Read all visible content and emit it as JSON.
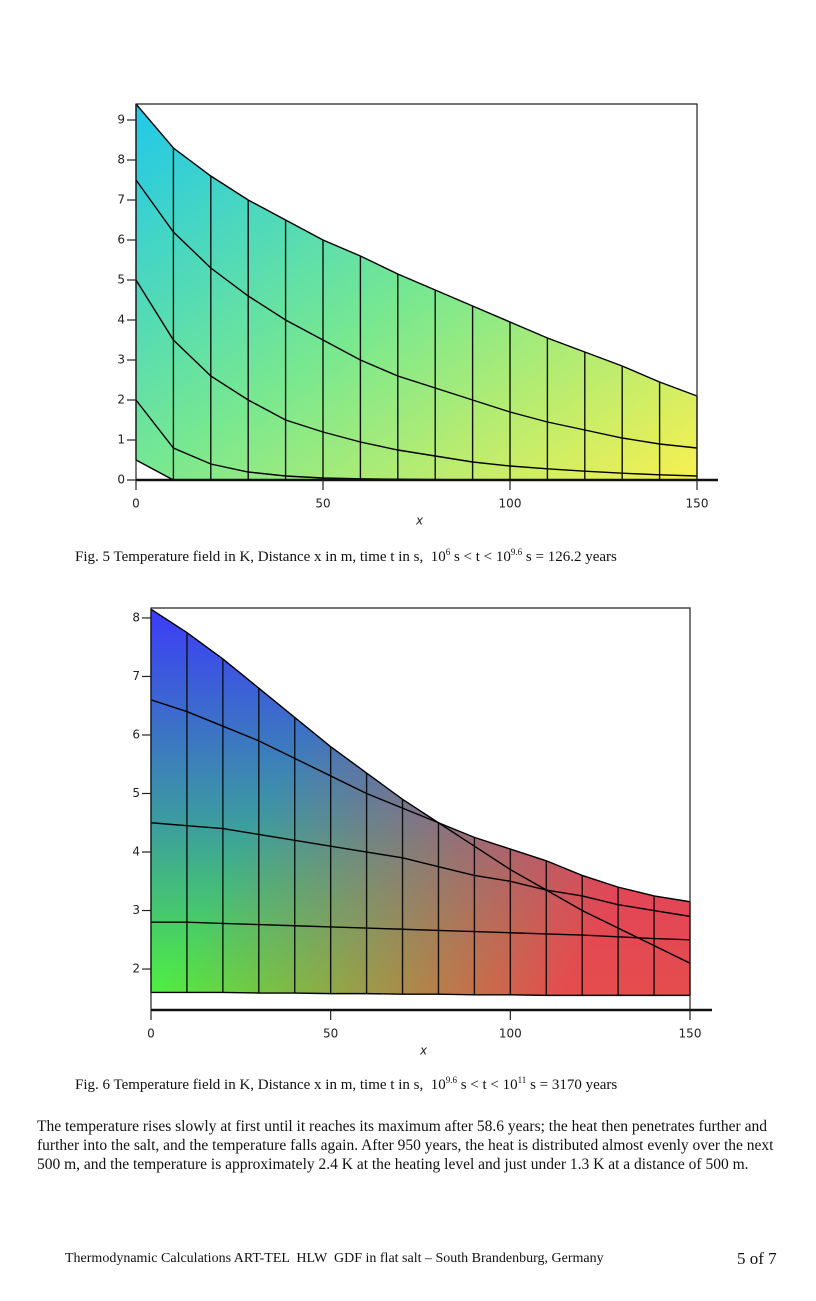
{
  "chart_data": [
    {
      "type": "surface",
      "xlabel": "x",
      "x": [
        0,
        10,
        20,
        30,
        40,
        50,
        60,
        70,
        80,
        90,
        100,
        110,
        120,
        130,
        140,
        150
      ],
      "xlim": [
        0,
        150
      ],
      "ylim": [
        0,
        9.4
      ],
      "xticks": [
        0,
        50,
        100,
        150
      ],
      "yticks": [
        0,
        1,
        2,
        3,
        4,
        5,
        6,
        7,
        8,
        9
      ],
      "series": [
        {
          "color": "#000000",
          "values": [
            9.4,
            8.3,
            7.6,
            7.0,
            6.5,
            6.0,
            5.6,
            5.15,
            4.75,
            4.35,
            3.95,
            3.55,
            3.2,
            2.85,
            2.45,
            2.1
          ]
        },
        {
          "color": "#000000",
          "values": [
            7.5,
            6.2,
            5.3,
            4.6,
            4.0,
            3.5,
            3.0,
            2.6,
            2.3,
            2.0,
            1.7,
            1.45,
            1.25,
            1.05,
            0.9,
            0.8
          ]
        },
        {
          "color": "#000000",
          "values": [
            5.0,
            3.5,
            2.6,
            2.0,
            1.5,
            1.2,
            0.95,
            0.75,
            0.6,
            0.45,
            0.35,
            0.28,
            0.22,
            0.17,
            0.13,
            0.1
          ]
        },
        {
          "color": "#000000",
          "values": [
            2.0,
            0.8,
            0.4,
            0.2,
            0.1,
            0.05,
            0.03,
            0.02,
            0.01,
            0,
            0,
            0,
            0,
            0,
            0,
            0
          ]
        },
        {
          "color": "#000000",
          "values": [
            0.5,
            0,
            0,
            0,
            0,
            0,
            0,
            0,
            0,
            0,
            0,
            0,
            0,
            0,
            0,
            0
          ]
        }
      ],
      "caption": [
        "Fig. 5 Temperature field in K, Distance x in m, time t in s,  10",
        "6",
        " s < t < 10",
        "9.6",
        " s = 126.2 years"
      ]
    },
    {
      "type": "surface",
      "xlabel": "x",
      "x": [
        0,
        10,
        20,
        30,
        40,
        50,
        60,
        70,
        80,
        90,
        100,
        110,
        120,
        130,
        140,
        150
      ],
      "xlim": [
        0,
        150
      ],
      "ylim": [
        1.3,
        8.17
      ],
      "xticks": [
        0,
        50,
        100,
        150
      ],
      "yticks": [
        2,
        3,
        4,
        5,
        6,
        7,
        8
      ],
      "series": [
        {
          "color": "#000000",
          "values": [
            8.15,
            7.75,
            7.3,
            6.8,
            6.3,
            5.8,
            5.35,
            4.9,
            4.5,
            4.1,
            3.7,
            3.35,
            3.0,
            2.7,
            2.4,
            2.1
          ]
        },
        {
          "color": "#000000",
          "values": [
            6.6,
            6.4,
            6.15,
            5.9,
            5.6,
            5.3,
            5.0,
            4.75,
            4.5,
            4.25,
            4.05,
            3.85,
            3.6,
            3.4,
            3.25,
            3.15
          ]
        },
        {
          "color": "#000000",
          "values": [
            4.5,
            4.45,
            4.4,
            4.3,
            4.2,
            4.1,
            4.0,
            3.9,
            3.75,
            3.6,
            3.5,
            3.35,
            3.25,
            3.1,
            3.0,
            2.9
          ]
        },
        {
          "color": "#000000",
          "values": [
            2.8,
            2.8,
            2.78,
            2.76,
            2.74,
            2.72,
            2.7,
            2.68,
            2.66,
            2.64,
            2.62,
            2.6,
            2.58,
            2.55,
            2.52,
            2.5
          ]
        },
        {
          "color": "#000000",
          "values": [
            1.6,
            1.6,
            1.6,
            1.59,
            1.59,
            1.58,
            1.58,
            1.57,
            1.57,
            1.56,
            1.56,
            1.55,
            1.55,
            1.55,
            1.55,
            1.55
          ]
        }
      ],
      "caption": [
        "Fig. 6 Temperature field in K, Distance x in m, time t in s,  10",
        "9.6",
        " s < t < 10",
        "11",
        " s = 3170 years"
      ]
    }
  ],
  "paragraph": "The temperature rises slowly at first until it reaches its maximum after 58.6 years; the heat then penetrates further and further into the salt, and the temperature falls again. After 950 years, the heat is distributed almost evenly over the next 500 m, and the temperature is approximately 2.4 K at the heating level and just under 1.3 K at a distance of 500 m.",
  "footer": {
    "text": "Thermodynamic Calculations ART-TEL  HLW  GDF in flat salt – South Brandenburg, Germany",
    "page": "5 of 7"
  }
}
